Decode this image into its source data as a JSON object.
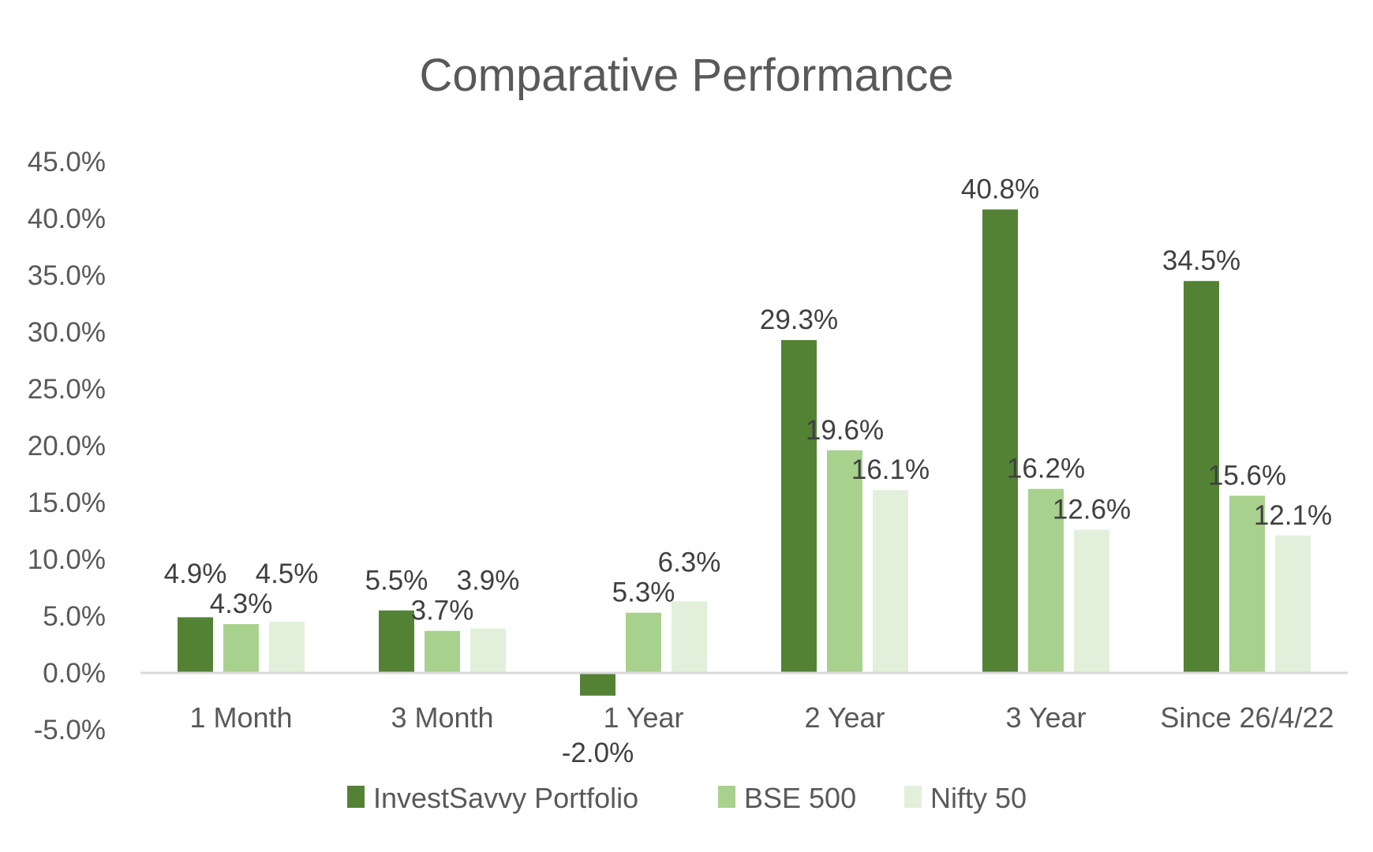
{
  "chart_data": {
    "type": "bar",
    "title": "Comparative Performance",
    "xlabel": "",
    "ylabel": "",
    "ylim": [
      -5,
      45
    ],
    "yticks": [
      "45.0%",
      "40.0%",
      "35.0%",
      "30.0%",
      "25.0%",
      "20.0%",
      "15.0%",
      "10.0%",
      "5.0%",
      "0.0%",
      "-5.0%"
    ],
    "ytick_values": [
      45,
      40,
      35,
      30,
      25,
      20,
      15,
      10,
      5,
      0,
      -5
    ],
    "grid": false,
    "legend_position": "bottom",
    "categories": [
      "1 Month",
      "3 Month",
      "1 Year",
      "2 Year",
      "3 Year",
      "Since 26/4/22"
    ],
    "series": [
      {
        "name": "InvestSavvy Portfolio",
        "color": "#548235",
        "values": [
          4.9,
          5.5,
          -2.0,
          29.3,
          40.8,
          34.5
        ],
        "labels": [
          "4.9%",
          "5.5%",
          "-2.0%",
          "29.3%",
          "40.8%",
          "34.5%"
        ]
      },
      {
        "name": "BSE 500",
        "color": "#A9D18E",
        "values": [
          4.3,
          3.7,
          5.3,
          19.6,
          16.2,
          15.6
        ],
        "labels": [
          "4.3%",
          "3.7%",
          "5.3%",
          "19.6%",
          "16.2%",
          "15.6%"
        ]
      },
      {
        "name": "Nifty 50",
        "color": "#E2EFDA",
        "values": [
          4.5,
          3.9,
          6.3,
          16.1,
          12.6,
          12.1
        ],
        "labels": [
          "4.5%",
          "3.9%",
          "6.3%",
          "16.1%",
          "12.6%",
          "12.1%"
        ]
      }
    ]
  }
}
